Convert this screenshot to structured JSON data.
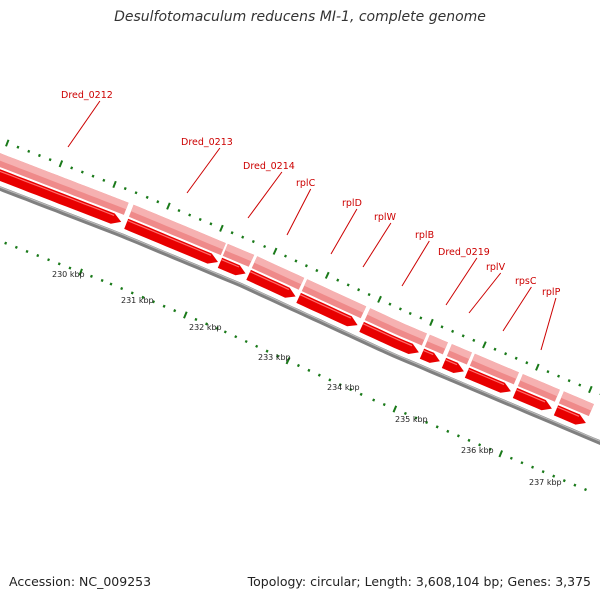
{
  "title": "Desulfotomaculum reducens MI-1, complete genome",
  "footer": {
    "accession": "Accession: NC_009253",
    "summary": "Topology: circular; Length: 3,608,104 bp; Genes: 3,375"
  },
  "colors": {
    "gene_label": "#cc0000",
    "gene_band": "#ef8a8a",
    "cds_arrow": "#e80000",
    "backbone": "#808080",
    "tick": "#1a7a1a"
  },
  "genes": [
    {
      "label": "Dred_0212"
    },
    {
      "label": "Dred_0213"
    },
    {
      "label": "Dred_0214"
    },
    {
      "label": "rplC"
    },
    {
      "label": "rplD"
    },
    {
      "label": "rplW"
    },
    {
      "label": "rplB"
    },
    {
      "label": "Dred_0219"
    },
    {
      "label": "rplV"
    },
    {
      "label": "rpsC"
    },
    {
      "label": "rplP"
    }
  ],
  "scale_ticks": [
    {
      "label": "230 kbp"
    },
    {
      "label": "231 kbp"
    },
    {
      "label": "232 kbp"
    },
    {
      "label": "233 kbp"
    },
    {
      "label": "234 kbp"
    },
    {
      "label": "235 kbp"
    },
    {
      "label": "236 kbp"
    },
    {
      "label": "237 kbp"
    }
  ]
}
